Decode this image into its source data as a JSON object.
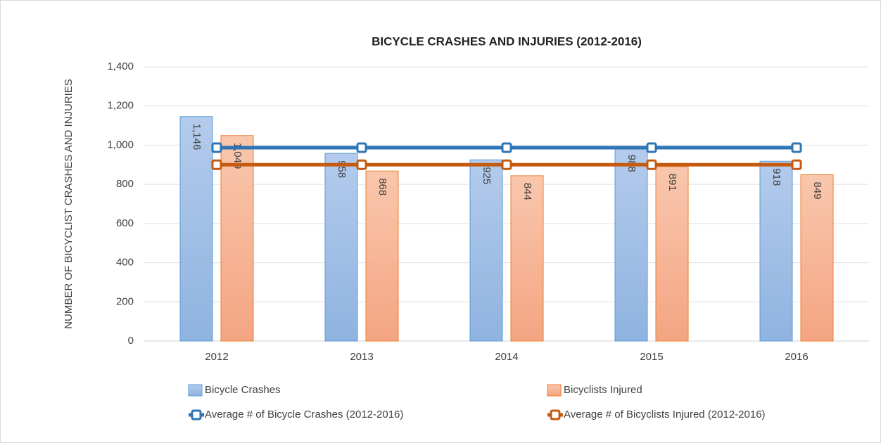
{
  "chart_data": {
    "type": "bar",
    "title": "BICYCLE CRASHES AND INJURIES (2012-2016)",
    "y_label": "NUMBER OF BICYCLIST CRASHES AND INJURIES",
    "categories": [
      "2012",
      "2013",
      "2014",
      "2015",
      "2016"
    ],
    "series": [
      {
        "name": "Bicycle Crashes",
        "type": "bar",
        "color": "#9dbde6",
        "values": [
          1146,
          958,
          925,
          988,
          918
        ],
        "value_labels": [
          "1,146",
          "958",
          "925",
          "988",
          "918"
        ]
      },
      {
        "name": "Bicyclists Injured",
        "type": "bar",
        "color": "#f6b594",
        "values": [
          1049,
          868,
          844,
          891,
          849
        ],
        "value_labels": [
          "1,049",
          "868",
          "844",
          "891",
          "849"
        ]
      },
      {
        "name": "Average # of Bicycle Crashes (2012-2016)",
        "type": "line",
        "color": "#2e75b6",
        "values": [
          987,
          987,
          987,
          987,
          987
        ]
      },
      {
        "name": "Average # of Bicyclists Injured (2012-2016)",
        "type": "line",
        "color": "#c55a11",
        "values": [
          900,
          900,
          900,
          900,
          900
        ]
      }
    ],
    "ylim": [
      0,
      1400
    ],
    "yticks": [
      0,
      200,
      400,
      600,
      800,
      {
        "value": 1000,
        "label": "1,000"
      },
      {
        "value": 1200,
        "label": "1,200"
      },
      {
        "value": 1400,
        "label": "1,400"
      }
    ],
    "grid": true
  }
}
